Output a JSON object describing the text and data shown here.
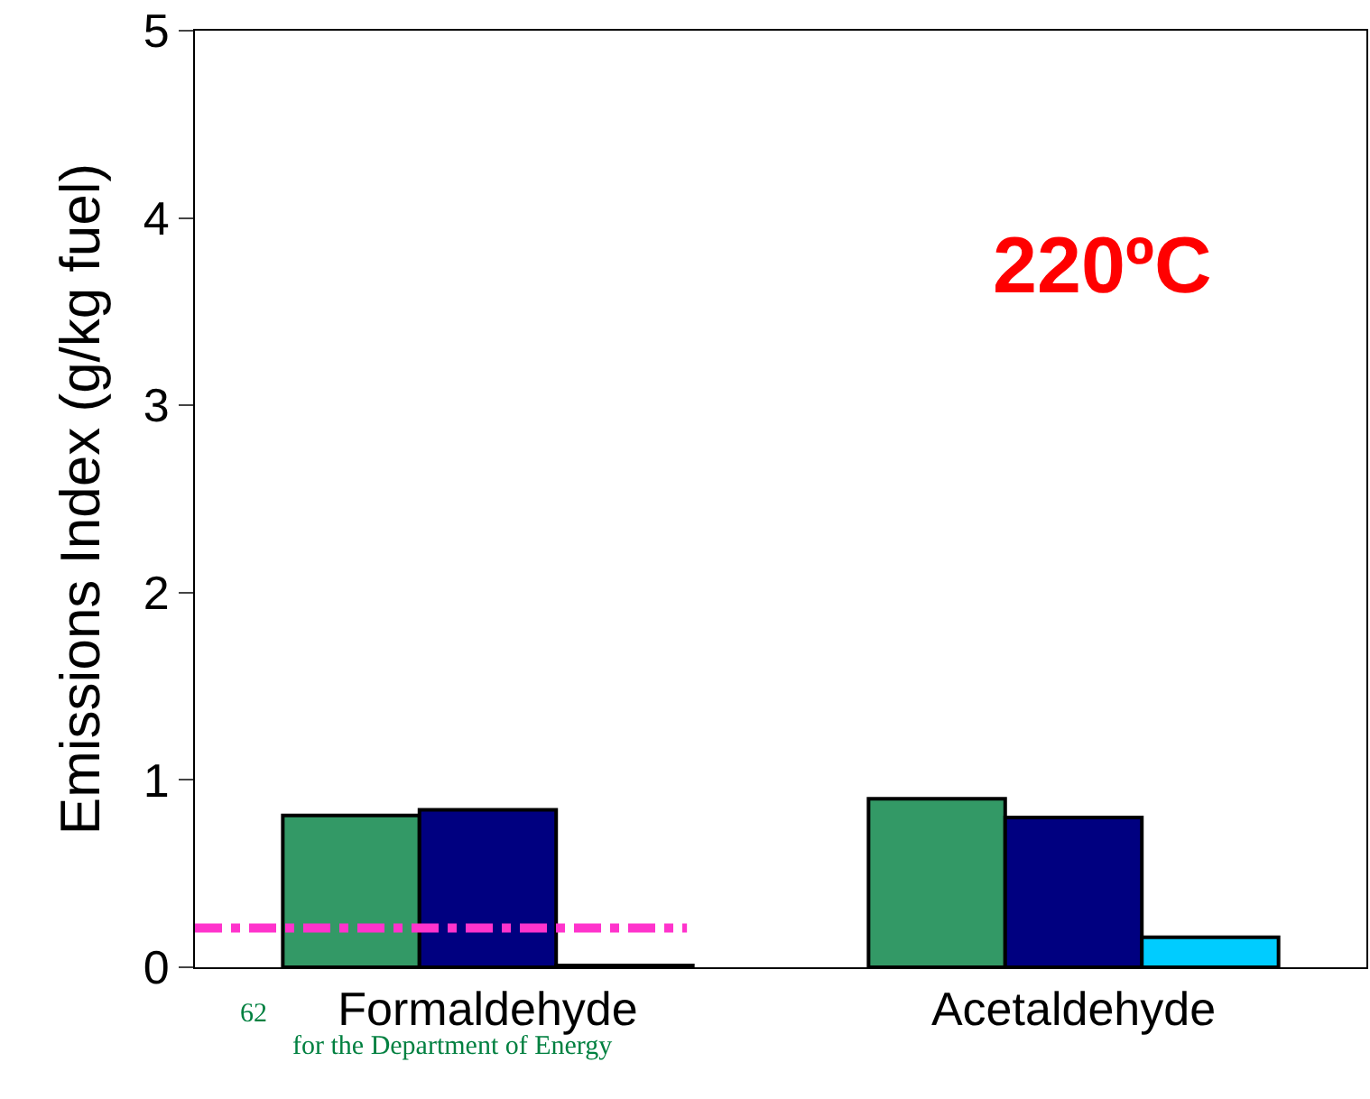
{
  "chart_data": {
    "type": "bar",
    "ylabel": "Emissions Index (g/kg fuel)",
    "categories": [
      "Formaldehyde",
      "Acetaldehyde"
    ],
    "series": [
      {
        "color": "#339966",
        "values": [
          0.81,
          0.9
        ]
      },
      {
        "color": "#000080",
        "values": [
          0.84,
          0.8
        ]
      },
      {
        "color": "#00ccff",
        "values": [
          0.01,
          0.16
        ]
      }
    ],
    "ylim": [
      0,
      5
    ],
    "yticks": [
      0,
      1,
      2,
      3,
      4,
      5
    ],
    "ref_lines": [
      {
        "axis": "y",
        "value": 0.21,
        "color": "#ff33cc",
        "line_style": "dashdot"
      }
    ],
    "annotations": [
      "220ºC",
      "62",
      "for the Department of Energy"
    ]
  }
}
